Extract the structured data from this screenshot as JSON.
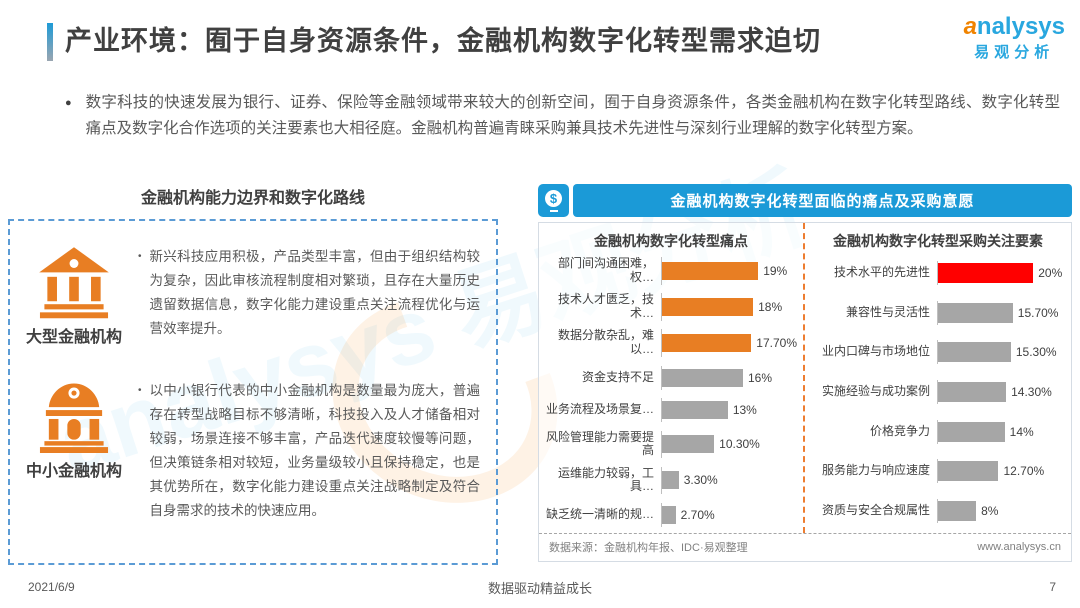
{
  "page": {
    "title": "产业环境：囿于自身资源条件，金融机构数字化转型需求迫切",
    "intro_bullet": "●",
    "intro": "数字科技的快速发展为银行、证券、保险等金融领域带来较大的创新空间，囿于自身资源条件，各类金融机构在数字化转型路线、数字化转型痛点及数字化合作选项的关注要素也大相径庭。金融机构普遍青睐采购兼具技术先进性与深刻行业理解的数字化转型方案。",
    "watermark": "analysys 易观分析"
  },
  "logo": {
    "brand_first": "a",
    "brand_rest": "nalysys",
    "brand_cn": "易观分析"
  },
  "left_section": {
    "title": "金融机构能力边界和数字化路线",
    "institutions": [
      {
        "name": "大型金融机构",
        "icon": "bank-classic-icon",
        "bullet": "•",
        "description": "新兴科技应用积极，产品类型丰富，但由于组织结构较为复杂，因此审核流程制度相对繁琐，且存在大量历史遗留数据信息，数字化能力建设重点关注流程优化与运营效率提升。"
      },
      {
        "name": "中小金融机构",
        "icon": "bank-dome-icon",
        "bullet": "•",
        "description": "以中小银行代表的中小金融机构是数量最为庞大，普遍存在转型战略目标不够清晰，科技投入及人才储备相对较弱，场景连接不够丰富，产品迭代速度较慢等问题，但决策链条相对较短，业务量级较小且保持稳定，也是其优势所在，数字化能力建设重点关注战略制定及符合自身需求的技术的快速应用。"
      }
    ]
  },
  "right_section": {
    "header": "金融机构数字化转型面临的痛点及采购意愿",
    "money_symbol": "$",
    "source_note": "数据来源：金融机构年报、IDC·易观整理",
    "website": "www.analysys.cn",
    "colors": {
      "header_blue": "#1B9AD7",
      "highlight_orange": "#E87E23",
      "highlight_red": "#FF0000",
      "bar_gray": "#A6A6A6"
    }
  },
  "chart_data": [
    {
      "type": "bar",
      "orientation": "horizontal",
      "title": "金融机构数字化转型痛点",
      "categories": [
        "部门间沟通困难，权…",
        "技术人才匮乏，技术…",
        "数据分散杂乱，难以…",
        "资金支持不足",
        "业务流程及场景复…",
        "风险管理能力需要提高",
        "运维能力较弱，工具…",
        "缺乏统一清晰的规…"
      ],
      "values": [
        19,
        18,
        17.7,
        16,
        13,
        10.3,
        3.3,
        2.7
      ],
      "labels": [
        "19%",
        "18%",
        "17.70%",
        "16%",
        "13%",
        "10.30%",
        "3.30%",
        "2.70%"
      ],
      "bar_colors": [
        "#E87E23",
        "#E87E23",
        "#E87E23",
        "#A6A6A6",
        "#A6A6A6",
        "#A6A6A6",
        "#A6A6A6",
        "#A6A6A6"
      ],
      "xlim": [
        0,
        20
      ],
      "grid": false,
      "legend": false
    },
    {
      "type": "bar",
      "orientation": "horizontal",
      "title": "金融机构数字化转型采购关注要素",
      "categories": [
        "技术水平的先进性",
        "兼容性与灵活性",
        "业内口碑与市场地位",
        "实施经验与成功案例",
        "价格竞争力",
        "服务能力与响应速度",
        "资质与安全合规属性"
      ],
      "values": [
        20,
        15.7,
        15.3,
        14.3,
        14,
        12.7,
        8
      ],
      "labels": [
        "20%",
        "15.70%",
        "15.30%",
        "14.30%",
        "14%",
        "12.70%",
        "8%"
      ],
      "bar_colors": [
        "#FF0000",
        "#A6A6A6",
        "#A6A6A6",
        "#A6A6A6",
        "#A6A6A6",
        "#A6A6A6",
        "#A6A6A6"
      ],
      "xlim": [
        0,
        20
      ],
      "grid": false,
      "legend": false
    }
  ],
  "footer": {
    "date": "2021/6/9",
    "slogan": "数据驱动精益成长",
    "page_number": "7"
  }
}
